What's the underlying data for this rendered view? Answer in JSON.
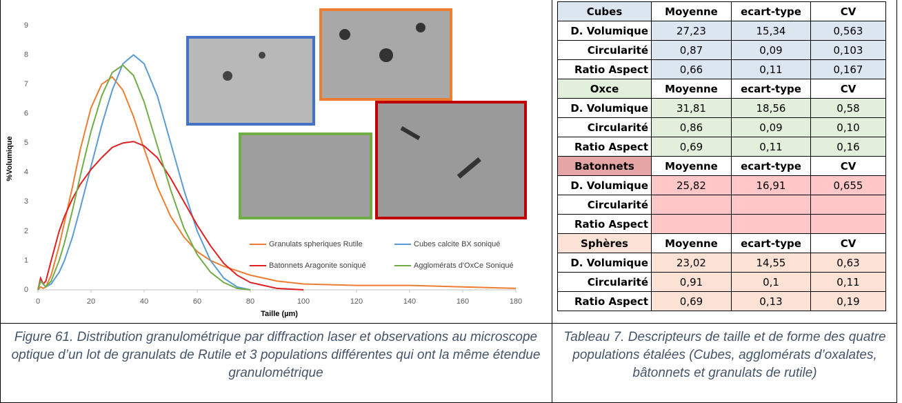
{
  "chart_data": {
    "type": "line",
    "x_label": "Taille (µm)",
    "y_label": "%Volumique",
    "x": [
      0,
      1,
      2,
      3,
      5,
      8,
      10,
      13,
      16,
      20,
      24,
      28,
      32,
      36,
      40,
      45,
      50,
      55,
      60,
      65,
      70,
      75,
      80,
      90,
      100,
      120,
      140,
      160,
      180
    ],
    "series": [
      {
        "name": "Granulats spheriques Rutile",
        "color": "#ed7d31",
        "values": [
          0,
          0.1,
          0.05,
          0.1,
          0.5,
          1.5,
          2.3,
          3.5,
          4.8,
          6.2,
          7.0,
          7.25,
          6.8,
          5.9,
          4.8,
          3.5,
          2.5,
          1.8,
          1.3,
          1.0,
          0.8,
          0.65,
          0.5,
          0.3,
          0.2,
          0.15,
          0.15,
          0.1,
          0.05
        ]
      },
      {
        "name": "Cubes calcite BX soniqué",
        "color": "#5b9bd5",
        "values": [
          0,
          0.3,
          0.2,
          0.1,
          0.2,
          0.6,
          1.0,
          1.8,
          2.8,
          4.2,
          5.6,
          6.8,
          7.7,
          8.0,
          7.7,
          6.6,
          5.0,
          3.4,
          2.0,
          1.0,
          0.4,
          0.1,
          0,
          null,
          null,
          null,
          null,
          null,
          null
        ]
      },
      {
        "name": "Batonnets Aragonite soniqué",
        "color": "#e02020",
        "values": [
          0,
          0.4,
          0.2,
          0.3,
          1.0,
          2.0,
          2.5,
          3.1,
          3.6,
          4.1,
          4.5,
          4.85,
          5.0,
          5.05,
          4.9,
          4.5,
          3.8,
          3.0,
          2.2,
          1.5,
          0.9,
          0.5,
          0.25,
          0.05,
          0,
          null,
          null,
          null,
          null
        ]
      },
      {
        "name": "Agglomérats d'OxCe Soniqué",
        "color": "#70ad47",
        "values": [
          0,
          0.3,
          0.2,
          0.1,
          0.3,
          1.0,
          1.6,
          2.7,
          3.9,
          5.4,
          6.6,
          7.4,
          7.65,
          7.3,
          6.4,
          4.9,
          3.4,
          2.1,
          1.2,
          0.6,
          0.25,
          0.05,
          0,
          null,
          null,
          null,
          null,
          null,
          null
        ]
      }
    ],
    "xlim": [
      0,
      180
    ],
    "xticks": [
      0,
      20,
      40,
      60,
      80,
      100,
      120,
      140,
      160,
      180
    ],
    "ylim": [
      0,
      9
    ],
    "yticks": [
      0,
      1,
      2,
      3,
      4,
      5,
      6,
      7,
      8,
      9
    ],
    "grid": false
  },
  "table": {
    "rows": [
      [
        "Cubes",
        "Moyenne",
        "ecart-type",
        "CV"
      ],
      [
        "D. Volumique",
        "27,23",
        "15,34",
        "0,563"
      ],
      [
        "Circularité",
        "0,87",
        "0,09",
        "0,103"
      ],
      [
        "Ratio Aspect",
        "0,66",
        "0,11",
        "0,167"
      ],
      [
        "Oxce",
        "Moyenne",
        "ecart-type",
        "CV"
      ],
      [
        "D. Volumique",
        "31,81",
        "18,56",
        "0,58"
      ],
      [
        "Circularité",
        "0,86",
        "0,09",
        "0,10"
      ],
      [
        "Ratio Aspect",
        "0,69",
        "0,11",
        "0,16"
      ],
      [
        "Batonnets",
        "Moyenne",
        "ecart-type",
        "CV"
      ],
      [
        "D. Volumique",
        "25,82",
        "16,91",
        "0,655"
      ],
      [
        "Circularité",
        null,
        null,
        null
      ],
      [
        "Ratio Aspect",
        null,
        null,
        null
      ],
      [
        "Sphères",
        "Moyenne",
        "ecart-type",
        "CV"
      ],
      [
        "D. Volumique",
        "23,02",
        "14,55",
        "0,63"
      ],
      [
        "Circularité",
        "0,91",
        "0,1",
        "0,11"
      ],
      [
        "Ratio Aspect",
        "0,69",
        "0,13",
        "0,19"
      ]
    ]
  },
  "figure_caption": "Figure 61. Distribution granulométrique par diffraction laser et observations au microscope optique d’un lot de granulats de Rutile et 3 populations différentes qui ont la même étendue granulométrique",
  "table_caption": "Tableau 7. Descripteurs de taille et de forme des quatre populations étalées (Cubes, agglomérats d’oxalates, bâtonnets et granulats de rutile)"
}
